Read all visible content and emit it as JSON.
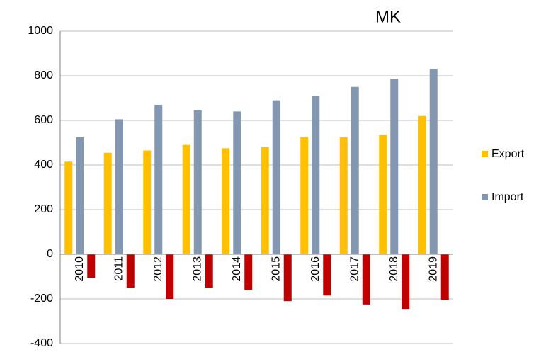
{
  "chart_data": {
    "type": "bar",
    "title": "MK",
    "categories": [
      "2010",
      "2011",
      "2012",
      "2013",
      "2014",
      "2015",
      "2016",
      "2017",
      "2018",
      "2019"
    ],
    "series": [
      {
        "name": "Export",
        "color": "#ffc000",
        "values": [
          415,
          455,
          465,
          490,
          475,
          480,
          525,
          525,
          535,
          620
        ]
      },
      {
        "name": "Import",
        "color": "#8497b0",
        "values": [
          525,
          605,
          670,
          645,
          640,
          690,
          710,
          750,
          785,
          830
        ]
      },
      {
        "color": "#c00000",
        "values": [
          -105,
          -150,
          -200,
          -150,
          -160,
          -210,
          -185,
          -225,
          -245,
          -205
        ]
      }
    ],
    "ylim": [
      -400,
      1000
    ],
    "yticks": [
      -400,
      -200,
      0,
      200,
      400,
      600,
      800,
      1000
    ],
    "grid": true,
    "legend": "right"
  }
}
